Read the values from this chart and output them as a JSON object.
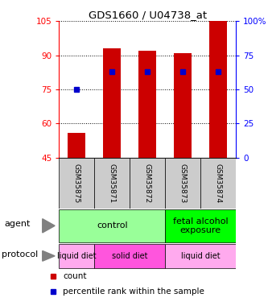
{
  "title": "GDS1660 / U04738_at",
  "samples": [
    "GSM35875",
    "GSM35871",
    "GSM35872",
    "GSM35873",
    "GSM35874"
  ],
  "bar_heights": [
    56,
    93,
    92,
    91,
    105
  ],
  "bar_bottom": 45,
  "percentile_values": [
    50,
    63,
    63,
    63,
    63
  ],
  "ylim_left": [
    45,
    105
  ],
  "ylim_right": [
    0,
    100
  ],
  "left_ticks": [
    45,
    60,
    75,
    90,
    105
  ],
  "right_ticks": [
    0,
    25,
    50,
    75,
    100
  ],
  "right_tick_labels": [
    "0",
    "25",
    "50",
    "75",
    "100%"
  ],
  "bar_color": "#cc0000",
  "percentile_color": "#0000cc",
  "legend_count_color": "#cc0000",
  "legend_percentile_color": "#0000cc",
  "background_color": "#ffffff",
  "sample_label_bg": "#cccccc",
  "agent_green_light": "#99ff99",
  "agent_green_bright": "#00ff00",
  "protocol_pink_light": "#ffaaee",
  "protocol_pink_bright": "#ff55dd"
}
